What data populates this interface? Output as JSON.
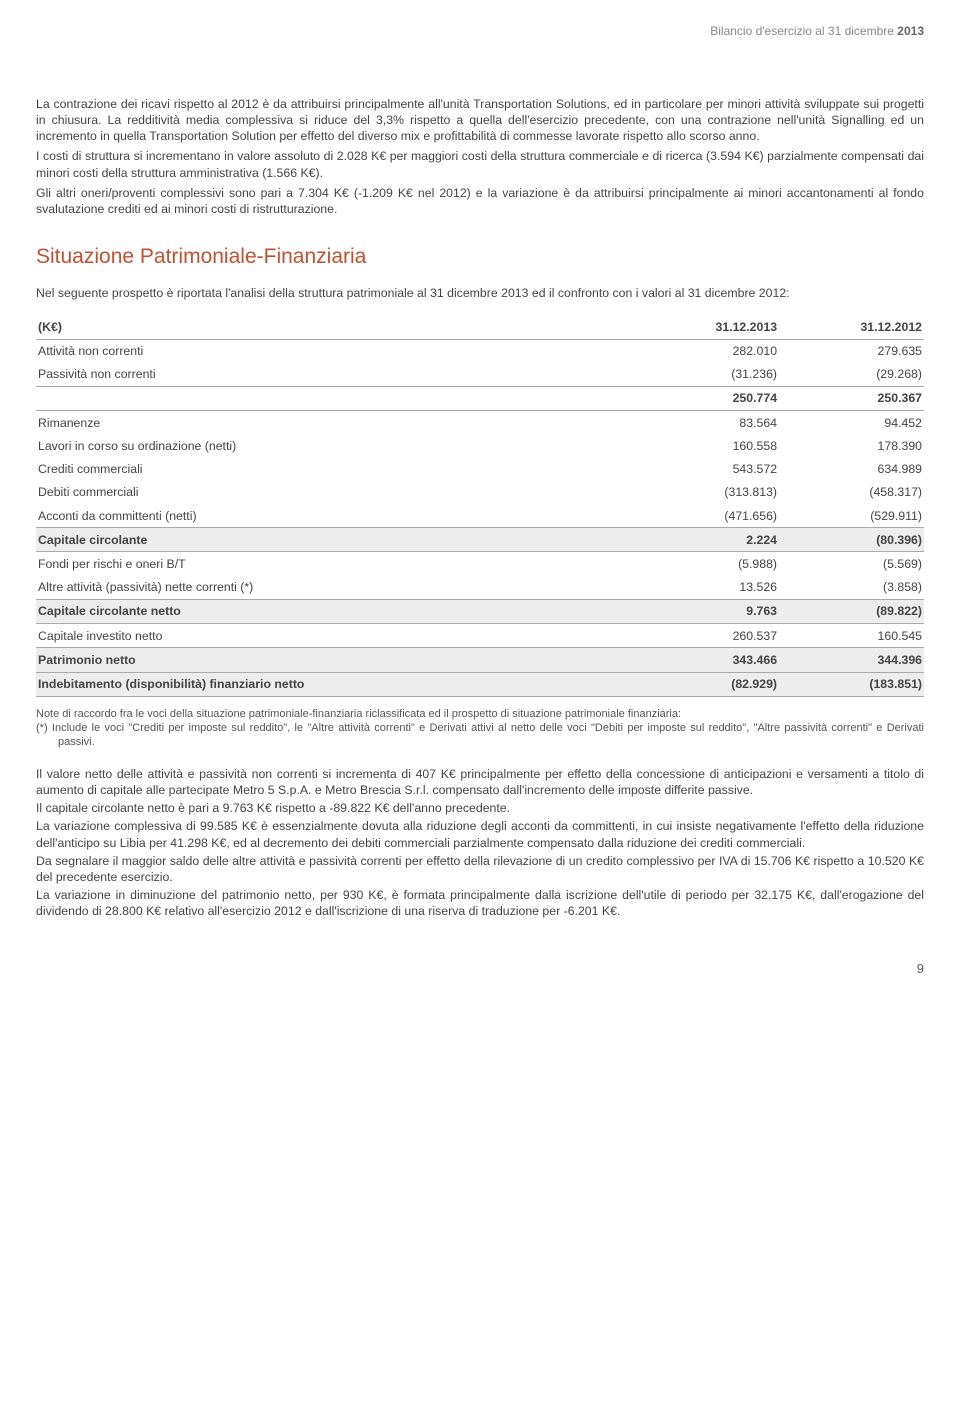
{
  "header": {
    "prefix": "Bilancio d'esercizio al 31 dicembre",
    "year": "2013"
  },
  "para1": "La contrazione dei ricavi rispetto al 2012 è da attribuirsi principalmente all'unità Transportation Solutions, ed in particolare per minori attività sviluppate sui progetti in chiusura. La redditività media complessiva si riduce del 3,3% rispetto a quella dell'esercizio precedente, con una contrazione nell'unità Signalling ed un incremento in quella Transportation Solution per effetto del diverso mix e profittabilità di commesse lavorate rispetto allo scorso anno.",
  "para2": "I costi di struttura si incrementano in valore assoluto di 2.028 K€ per maggiori costi della struttura commerciale e di ricerca (3.594 K€) parzialmente compensati dai minori costi della struttura amministrativa (1.566 K€).",
  "para3": "Gli altri oneri/proventi complessivi sono pari a 7.304 K€ (-1.209 K€ nel 2012) e la variazione è da attribuirsi principalmente ai minori accantonamenti al fondo svalutazione crediti ed ai minori costi di ristrutturazione.",
  "section_title": "Situazione Patrimoniale-Finanziaria",
  "section_intro": "Nel seguente prospetto è riportata l'analisi della struttura patrimoniale al 31 dicembre 2013 ed il confronto con i valori al 31 dicembre 2012:",
  "table": {
    "head": {
      "c0": "(K€)",
      "c1": "31.12.2013",
      "c2": "31.12.2012"
    },
    "r1": {
      "c0": "Attività non correnti",
      "c1": "282.010",
      "c2": "279.635"
    },
    "r2": {
      "c0": "Passività non correnti",
      "c1": "(31.236)",
      "c2": "(29.268)"
    },
    "r3": {
      "c0": "",
      "c1": "250.774",
      "c2": "250.367"
    },
    "r4": {
      "c0": "Rimanenze",
      "c1": "83.564",
      "c2": "94.452"
    },
    "r5": {
      "c0": "Lavori in corso su ordinazione (netti)",
      "c1": "160.558",
      "c2": "178.390"
    },
    "r6": {
      "c0": "Crediti commerciali",
      "c1": "543.572",
      "c2": "634.989"
    },
    "r7": {
      "c0": "Debiti commerciali",
      "c1": "(313.813)",
      "c2": "(458.317)"
    },
    "r8": {
      "c0": "Acconti da committenti (netti)",
      "c1": "(471.656)",
      "c2": "(529.911)"
    },
    "r9": {
      "c0": "Capitale circolante",
      "c1": "2.224",
      "c2": "(80.396)"
    },
    "r10": {
      "c0": "Fondi per rischi e oneri B/T",
      "c1": "(5.988)",
      "c2": "(5.569)"
    },
    "r11": {
      "c0": "Altre attività (passività) nette correnti (*)",
      "c1": "13.526",
      "c2": "(3.858)"
    },
    "r12": {
      "c0": "Capitale circolante netto",
      "c1": "9.763",
      "c2": "(89.822)"
    },
    "r13": {
      "c0": "Capitale investito netto",
      "c1": "260.537",
      "c2": "160.545"
    },
    "r14": {
      "c0": "Patrimonio netto",
      "c1": "343.466",
      "c2": "344.396"
    },
    "r15": {
      "c0": "Indebitamento (disponibilità) finanziario netto",
      "c1": "(82.929)",
      "c2": "(183.851)"
    }
  },
  "note1": "Note di raccordo fra le voci della situazione patrimoniale-finanziaria riclassificata ed il prospetto di situazione patrimoniale finanziaria:",
  "note2": "(*) Include le voci \"Crediti per imposte sul reddito\", le \"Altre attività correnti\" e Derivati attivi al netto delle voci \"Debiti per imposte sul reddito\", \"Altre passività correnti\" e Derivati passivi.",
  "fp1": "Il valore netto delle attività e passività non correnti si incrementa di 407 K€ principalmente per effetto della concessione di anticipazioni e versamenti a titolo di aumento di capitale alle partecipate Metro 5 S.p.A. e Metro Brescia S.r.l. compensato dall'incremento delle imposte differite passive.",
  "fp2": "Il capitale circolante netto è pari a 9.763 K€ rispetto a -89.822 K€ dell'anno precedente.",
  "fp3": "La variazione complessiva di 99.585 K€ è essenzialmente dovuta alla riduzione degli acconti da committenti, in cui insiste negativamente l'effetto della riduzione dell'anticipo su Libia per 41.298 K€, ed al decremento dei debiti commerciali parzialmente compensato dalla riduzione dei crediti commerciali.",
  "fp4": "Da segnalare il maggior saldo delle altre attività e passività correnti per effetto della rilevazione di un credito complessivo per IVA di 15.706 K€ rispetto a 10.520 K€ del precedente esercizio.",
  "fp5": "La variazione in diminuzione del patrimonio netto, per 930 K€, è formata principalmente dalla iscrizione dell'utile di periodo per 32.175 K€, dall'erogazione del dividendo di 28.800 K€ relativo all'esercizio 2012 e dall'iscrizione di una riserva di traduzione per -6.201 K€.",
  "page_number": "9"
}
